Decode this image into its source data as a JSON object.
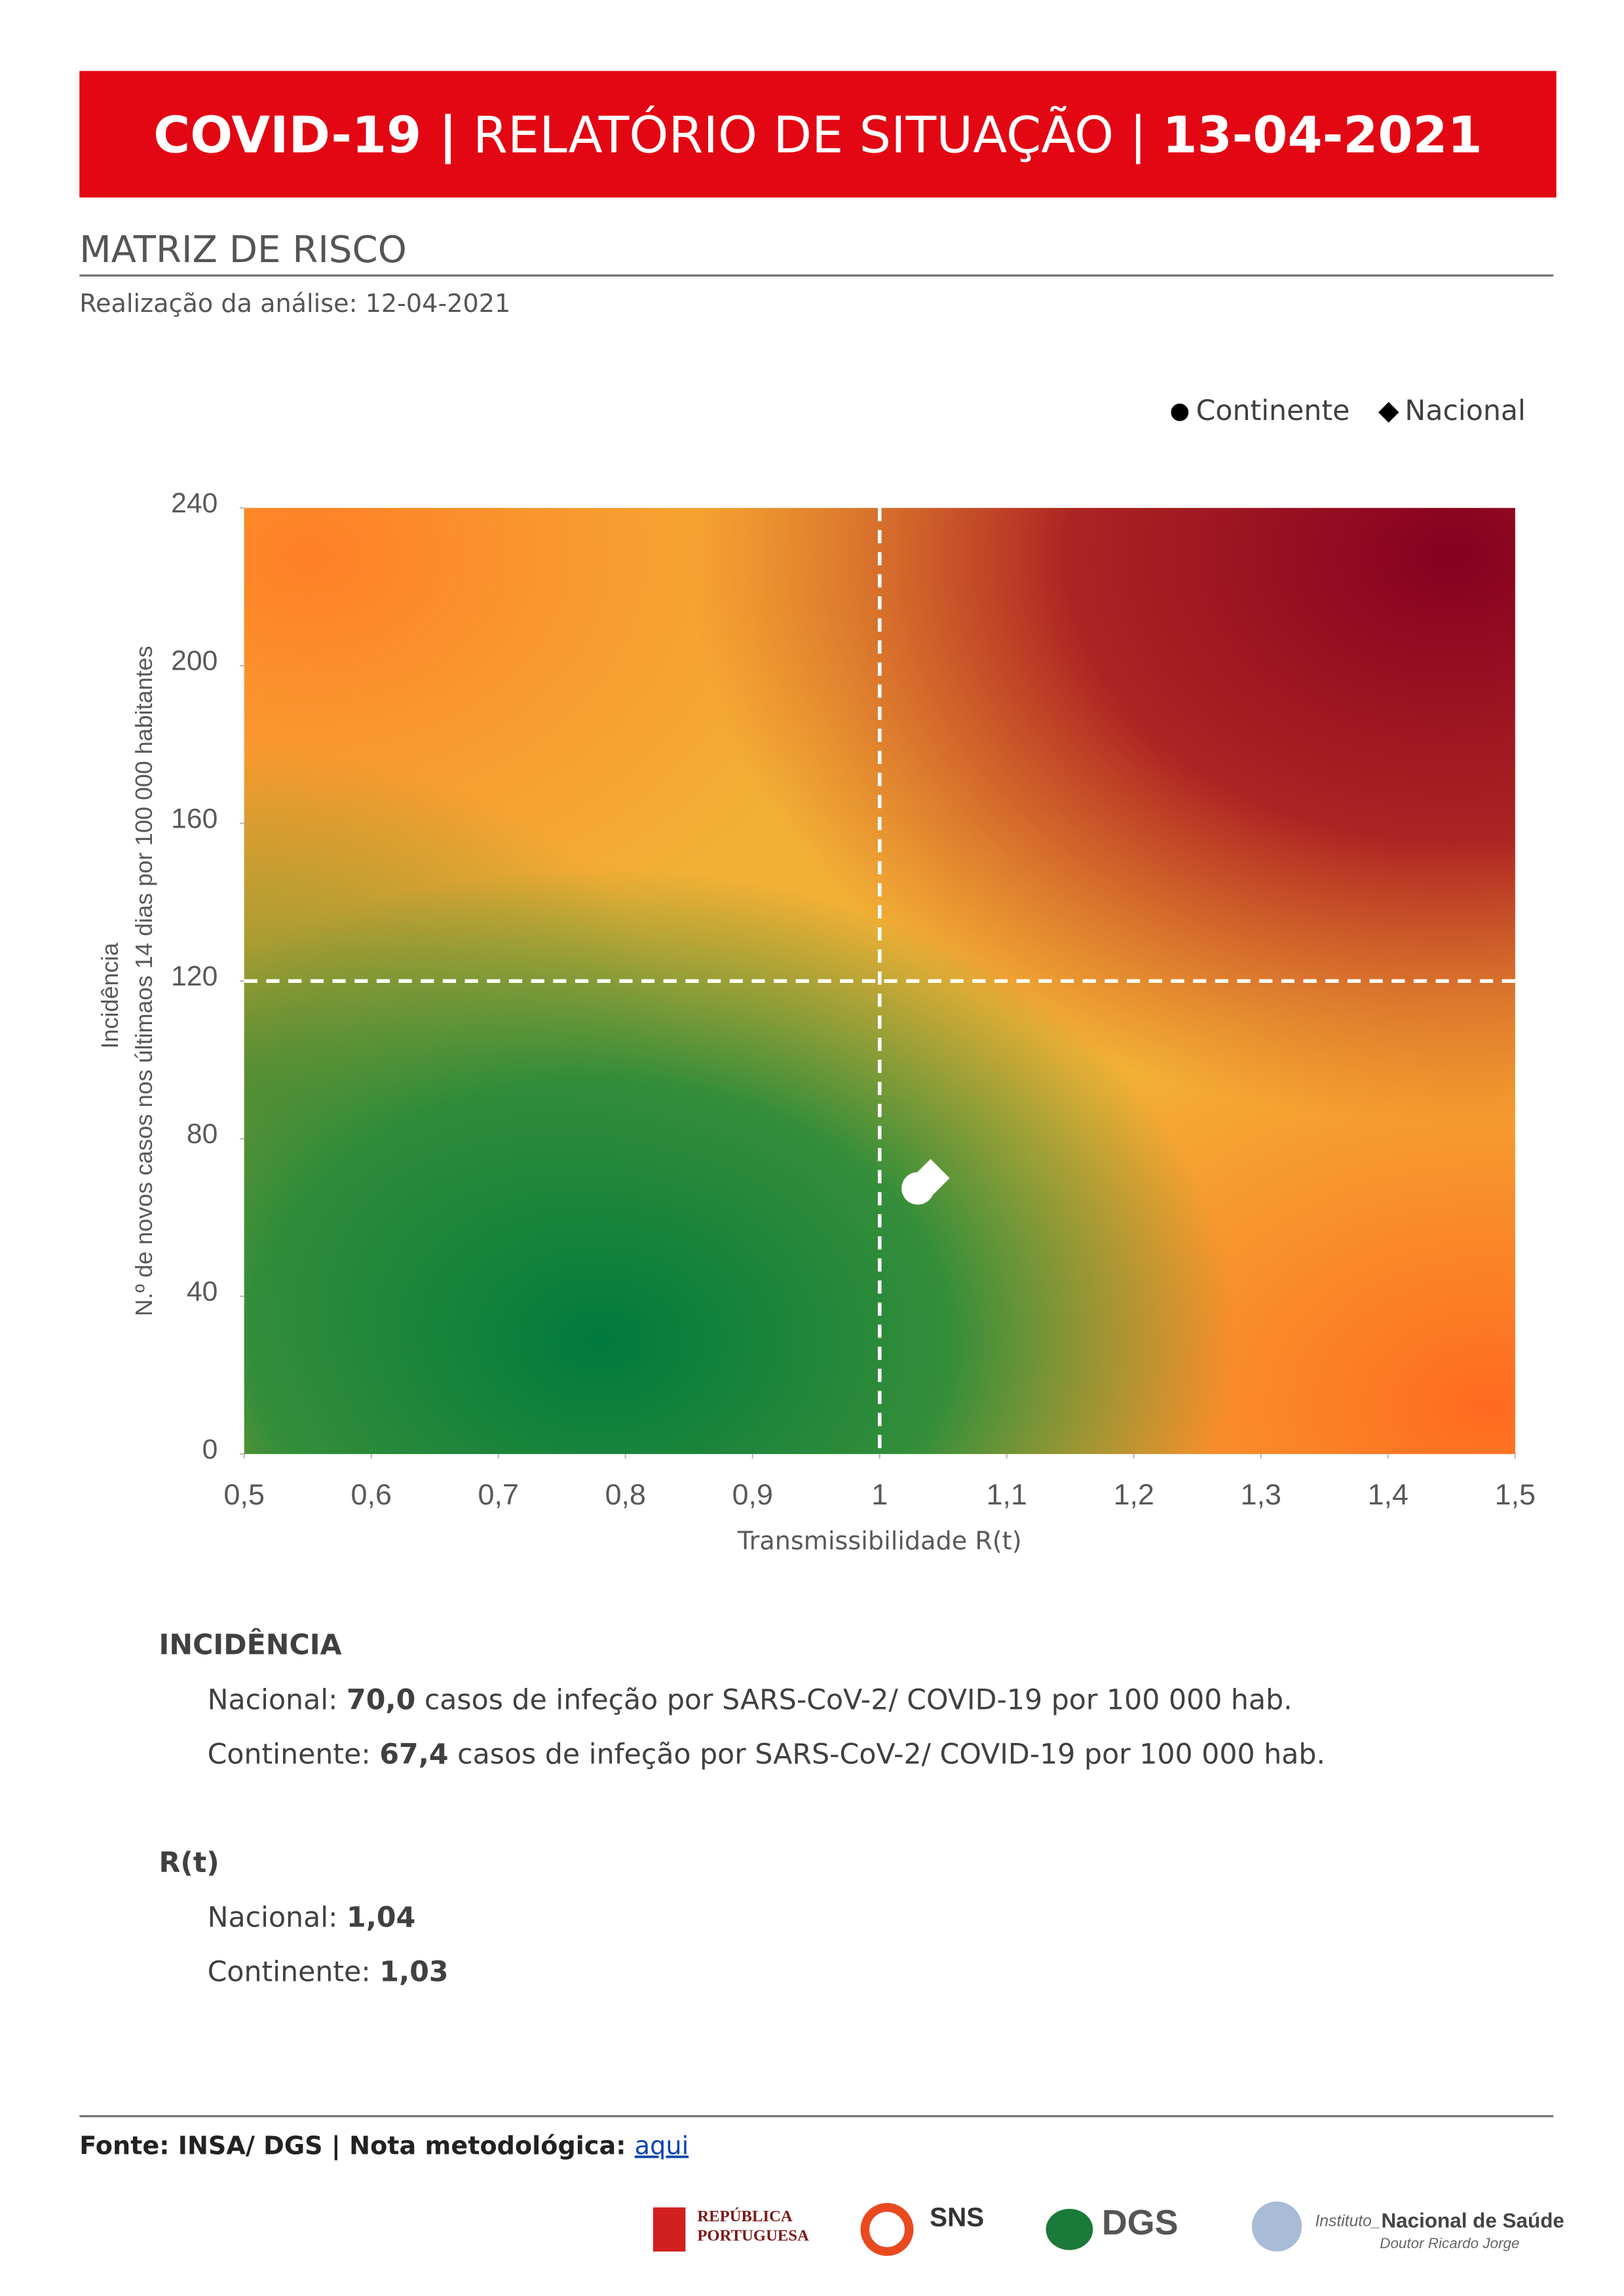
{
  "header": {
    "title_bold": "COVID-19 |",
    "title_main": " RELATÓRIO DE SITUAÇÃO | ",
    "title_date": "13-04-2021"
  },
  "section": {
    "title": "MATRIZ DE RISCO",
    "subtitle": "Realização da análise: 12-04-2021"
  },
  "chart_data": {
    "type": "scatter",
    "xlabel": "Transmissibilidade R(t)",
    "ylabel_top": "Incidência",
    "ylabel": "N.º de novos casos nos últimaos 14 dias por 100 000 habitantes",
    "xlim": [
      0.5,
      1.5
    ],
    "xticks": [
      {
        "value": 0.5,
        "label": "0,5"
      },
      {
        "value": 0.6,
        "label": "0,6"
      },
      {
        "value": 0.7,
        "label": "0,7"
      },
      {
        "value": 0.8,
        "label": "0,8"
      },
      {
        "value": 0.9,
        "label": "0,9"
      },
      1,
      {
        "value": 1.1,
        "label": "1,1"
      },
      {
        "value": 1.2,
        "label": "1,2"
      },
      {
        "value": 1.3,
        "label": "1,3"
      },
      {
        "value": 1.4,
        "label": "1,4"
      },
      {
        "value": 1.5,
        "label": "1,5"
      }
    ],
    "ylim": [
      0,
      240
    ],
    "yticks": [
      0,
      40,
      80,
      120,
      160,
      200,
      240
    ],
    "x_threshold": 1,
    "y_threshold": 120,
    "legend": "top-right",
    "series": [
      {
        "name": "Nacional",
        "marker": "diamond",
        "color": "#ffffff",
        "x": [
          1.04
        ],
        "values": [
          70.0
        ]
      },
      {
        "name": "Continente",
        "marker": "circle",
        "color": "#ffffff",
        "x": [
          1.03
        ],
        "values": [
          67.4
        ]
      }
    ]
  },
  "incidencia": {
    "heading": "INCIDÊNCIA",
    "lines": [
      {
        "label": "Nacional: ",
        "value": "70,0",
        "text": " casos de infeção por SARS-CoV-2/ COVID-19 por 100 000 hab."
      },
      {
        "label": "Continente: ",
        "value": "67,4",
        "text": " casos de infeção por SARS-CoV-2/ COVID-19 por 100 000 hab."
      }
    ]
  },
  "rt": {
    "heading": "R(t)",
    "lines": [
      {
        "label": "Nacional: ",
        "value": "1,04"
      },
      {
        "label": "Continente: ",
        "value": "1,03"
      }
    ]
  },
  "footer": {
    "source": "Fonte: INSA/ DGS  |  Nota metodológica: ",
    "link": "aqui",
    "logos": [
      "REPÚBLICA",
      "PORTUGUESA",
      "SNS",
      "DGS",
      "Instituto_",
      "Nacional de Saúde",
      "Doutor Ricardo Jorge"
    ]
  }
}
